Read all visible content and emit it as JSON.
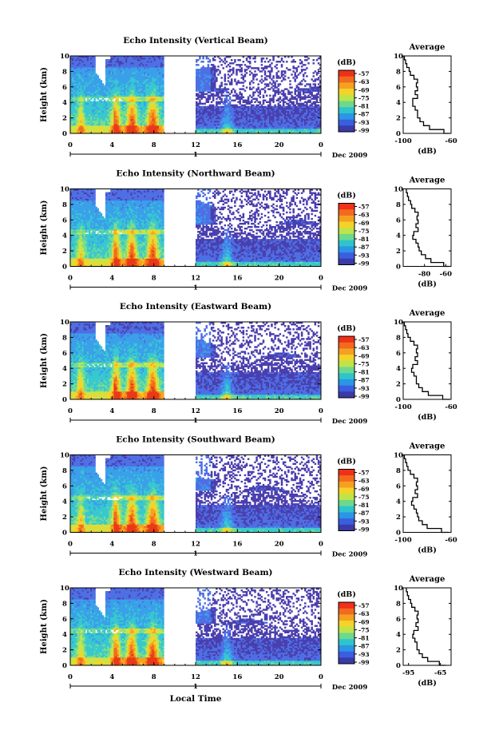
{
  "figure": {
    "xlabel": "Local Time",
    "date_label": "Dec 2009",
    "day_label": "1",
    "colorbar_unit": "(dB)",
    "colorbar_ticks": [
      "-57",
      "-63",
      "-69",
      "-75",
      "-81",
      "-87",
      "-93",
      "-99"
    ],
    "colorbar_colors": [
      "#f03018",
      "#f26a1e",
      "#f5a020",
      "#f4d328",
      "#bde44a",
      "#6cd98e",
      "#2fc4cc",
      "#2a96e6",
      "#3a5ee0",
      "#3a3aa8"
    ],
    "data_colors": [
      "#4a3fae",
      "#4f6fe4",
      "#3aa0ea",
      "#38c8cf",
      "#78dd8c",
      "#c4e64a",
      "#f7d229",
      "#f7a21f",
      "#f26c1d",
      "#e83a17"
    ]
  },
  "chart_data": [
    {
      "type": "heatmap",
      "title": "Echo Intensity (Vertical Beam)",
      "ylabel": "Height (km)",
      "xlim": [
        0,
        24
      ],
      "ylim": [
        0,
        10
      ],
      "xticks": [
        "0",
        "4",
        "8",
        "12",
        "16",
        "20",
        "0"
      ],
      "yticks": [
        "0",
        "2",
        "4",
        "6",
        "8",
        "10"
      ],
      "data_gap": [
        9,
        12
      ],
      "cbar_range": [
        -99,
        -57
      ],
      "profile": {
        "title": "Average",
        "xlabel": "(dB)",
        "xlim": [
          -100,
          -60
        ],
        "xticks": [
          "-100",
          "-60"
        ],
        "height": [
          0,
          0.5,
          1,
          1.5,
          2,
          2.5,
          3,
          3.5,
          4,
          4.5,
          5,
          5.5,
          6,
          6.5,
          7,
          7.5,
          8,
          8.5,
          9,
          9.5,
          10
        ],
        "value": [
          -61,
          -66,
          -78,
          -83,
          -86,
          -88,
          -88,
          -90,
          -92,
          -92,
          -88,
          -90,
          -88,
          -89,
          -88,
          -91,
          -94,
          -95,
          -97,
          -98,
          -99
        ]
      }
    },
    {
      "type": "heatmap",
      "title": "Echo Intensity (Northward Beam)",
      "ylabel": "Height (km)",
      "xlim": [
        0,
        24
      ],
      "ylim": [
        0,
        10
      ],
      "xticks": [
        "0",
        "4",
        "8",
        "12",
        "16",
        "20",
        "0"
      ],
      "yticks": [
        "0",
        "2",
        "4",
        "6",
        "8",
        "10"
      ],
      "data_gap": [
        9,
        12
      ],
      "cbar_range": [
        -99,
        -57
      ],
      "profile": {
        "title": "Average",
        "xlabel": "(dB)",
        "xlim": [
          -100,
          -55
        ],
        "xticks": [
          "-80",
          "-60"
        ],
        "height": [
          0,
          0.5,
          1,
          1.5,
          2,
          2.5,
          3,
          3.5,
          4,
          4.5,
          5,
          5.5,
          6,
          6.5,
          7,
          7.5,
          8,
          8.5,
          9,
          9.5,
          10
        ],
        "value": [
          -57,
          -62,
          -74,
          -79,
          -83,
          -85,
          -86,
          -88,
          -91,
          -90,
          -86,
          -88,
          -86,
          -87,
          -86,
          -89,
          -92,
          -93,
          -95,
          -96,
          -97
        ]
      }
    },
    {
      "type": "heatmap",
      "title": "Echo Intensity (Eastward Beam)",
      "ylabel": "Height (km)",
      "xlim": [
        0,
        24
      ],
      "ylim": [
        0,
        10
      ],
      "xticks": [
        "0",
        "4",
        "8",
        "12",
        "16",
        "20",
        "0"
      ],
      "yticks": [
        "0",
        "2",
        "4",
        "6",
        "8",
        "10"
      ],
      "data_gap": [
        9,
        12
      ],
      "cbar_range": [
        -99,
        -57
      ],
      "profile": {
        "title": "Average",
        "xlabel": "(dB)",
        "xlim": [
          -100,
          -60
        ],
        "xticks": [
          "-100",
          "-60"
        ],
        "height": [
          0,
          0.5,
          1,
          1.5,
          2,
          2.5,
          3,
          3.5,
          4,
          4.5,
          5,
          5.5,
          6,
          6.5,
          7,
          7.5,
          8,
          8.5,
          9,
          9.5,
          10
        ],
        "value": [
          -61,
          -67,
          -79,
          -84,
          -87,
          -89,
          -89,
          -91,
          -93,
          -92,
          -88,
          -90,
          -88,
          -89,
          -88,
          -91,
          -94,
          -96,
          -97,
          -98,
          -99
        ]
      }
    },
    {
      "type": "heatmap",
      "title": "Echo Intensity (Southward Beam)",
      "ylabel": "Height (km)",
      "xlim": [
        0,
        24
      ],
      "ylim": [
        0,
        10
      ],
      "xticks": [
        "0",
        "4",
        "8",
        "12",
        "16",
        "20",
        "0"
      ],
      "yticks": [
        "0",
        "2",
        "4",
        "6",
        "8",
        "10"
      ],
      "data_gap": [
        9,
        12
      ],
      "cbar_range": [
        -99,
        -57
      ],
      "profile": {
        "title": "Average",
        "xlabel": "(dB)",
        "xlim": [
          -100,
          -60
        ],
        "xticks": [
          "-100",
          "-60"
        ],
        "height": [
          0,
          0.5,
          1,
          1.5,
          2,
          2.5,
          3,
          3.5,
          4,
          4.5,
          5,
          5.5,
          6,
          6.5,
          7,
          7.5,
          8,
          8.5,
          9,
          9.5,
          10
        ],
        "value": [
          -62,
          -68,
          -80,
          -84,
          -87,
          -88,
          -89,
          -91,
          -93,
          -92,
          -88,
          -90,
          -88,
          -89,
          -88,
          -91,
          -94,
          -96,
          -97,
          -98,
          -99
        ]
      }
    },
    {
      "type": "heatmap",
      "title": "Echo Intensity (Westward Beam)",
      "ylabel": "Height (km)",
      "xlim": [
        0,
        24
      ],
      "ylim": [
        0,
        10
      ],
      "xticks": [
        "0",
        "4",
        "8",
        "12",
        "16",
        "20",
        "0"
      ],
      "yticks": [
        "0",
        "2",
        "4",
        "6",
        "8",
        "10"
      ],
      "data_gap": [
        9,
        12
      ],
      "cbar_range": [
        -99,
        -57
      ],
      "profile": {
        "title": "Average",
        "xlabel": "(dB)",
        "xlim": [
          -100,
          -55
        ],
        "xticks": [
          "-95",
          "-65"
        ],
        "height": [
          0,
          0.5,
          1,
          1.5,
          2,
          2.5,
          3,
          3.5,
          4,
          4.5,
          5,
          5.5,
          6,
          6.5,
          7,
          7.5,
          8,
          8.5,
          9,
          9.5,
          10
        ],
        "value": [
          -60,
          -66,
          -77,
          -82,
          -85,
          -87,
          -87,
          -89,
          -91,
          -90,
          -86,
          -88,
          -86,
          -87,
          -86,
          -89,
          -92,
          -93,
          -95,
          -96,
          -97
        ]
      }
    }
  ]
}
